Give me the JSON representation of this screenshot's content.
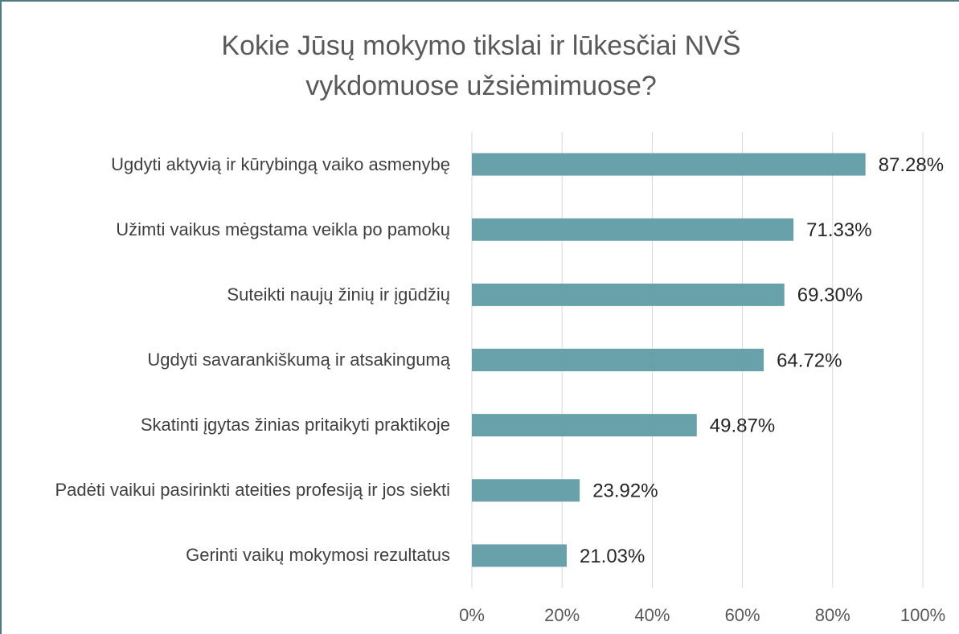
{
  "chart_data": {
    "type": "barh",
    "title": "Kokie Jūsų mokymo tikslai ir lūkesčiai NVŠ vykdomuose užsiėmimuose?",
    "categories": [
      "Ugdyti aktyvią ir kūrybingą vaiko asmenybę",
      "Užimti vaikus mėgstama veikla po pamokų",
      "Suteikti naujų žinių ir įgūdžių",
      "Ugdyti savarankiškumą ir atsakingumą",
      "Skatinti įgytas žinias pritaikyti praktikoje",
      "Padėti vaikui pasirinkti ateities profesiją ir jos siekti",
      "Gerinti vaikų mokymosi rezultatus"
    ],
    "values": [
      87.28,
      71.33,
      69.3,
      64.72,
      49.87,
      23.92,
      21.03
    ],
    "value_labels": [
      "87.28%",
      "71.33%",
      "69.30%",
      "64.72%",
      "49.87%",
      "23.92%",
      "21.03%"
    ],
    "color": "#68a1aa",
    "xlim": [
      0,
      100
    ],
    "xticks": [
      {
        "value": 0,
        "label": "0%"
      },
      {
        "value": 20,
        "label": "20%"
      },
      {
        "value": 40,
        "label": "40%"
      },
      {
        "value": 60,
        "label": "60%"
      },
      {
        "value": 80,
        "label": "80%"
      },
      {
        "value": 100,
        "label": "100%"
      }
    ],
    "grid": true
  }
}
